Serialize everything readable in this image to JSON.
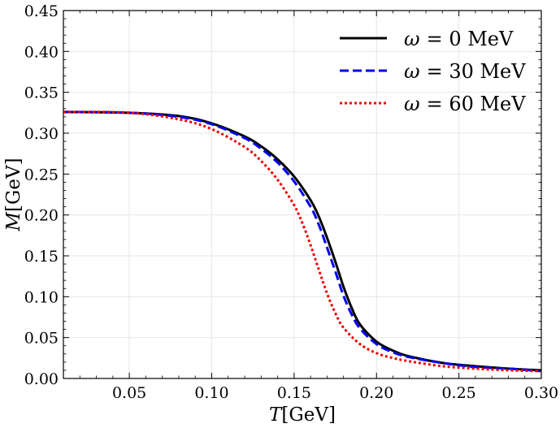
{
  "chart_data": {
    "type": "line",
    "title": "",
    "xlabel": {
      "symbol": "T",
      "unit": "[GeV]"
    },
    "ylabel": {
      "symbol": "M",
      "unit": "[GeV]"
    },
    "xlim": [
      0.01,
      0.3
    ],
    "ylim": [
      0.0,
      0.45
    ],
    "grid": true,
    "legend_position": "top-right",
    "x_ticks": [
      0.05,
      0.1,
      0.15,
      0.2,
      0.25,
      0.3
    ],
    "x_tick_labels": [
      "0.05",
      "0.10",
      "0.15",
      "0.20",
      "0.25",
      "0.30"
    ],
    "y_ticks": [
      0.0,
      0.05,
      0.1,
      0.15,
      0.2,
      0.25,
      0.3,
      0.35,
      0.4,
      0.45
    ],
    "y_tick_labels": [
      "0.00",
      "0.05",
      "0.10",
      "0.15",
      "0.20",
      "0.25",
      "0.30",
      "0.35",
      "0.40",
      "0.45"
    ],
    "series": [
      {
        "name": "ω = 0 MeV",
        "legend_symbol": "ω",
        "legend_value": "= 0 MeV",
        "color": "#000000",
        "style": "solid",
        "x": [
          0.01,
          0.05,
          0.08,
          0.1,
          0.12,
          0.13,
          0.14,
          0.15,
          0.16,
          0.165,
          0.17,
          0.175,
          0.18,
          0.185,
          0.19,
          0.2,
          0.21,
          0.22,
          0.24,
          0.26,
          0.28,
          0.3
        ],
        "y": [
          0.326,
          0.325,
          0.321,
          0.312,
          0.296,
          0.284,
          0.268,
          0.247,
          0.218,
          0.198,
          0.172,
          0.143,
          0.112,
          0.086,
          0.066,
          0.045,
          0.034,
          0.027,
          0.019,
          0.015,
          0.012,
          0.01
        ]
      },
      {
        "name": "ω = 30 MeV",
        "legend_symbol": "ω",
        "legend_value": "= 30 MeV",
        "color": "#0000ee",
        "style": "dashed",
        "x": [
          0.01,
          0.05,
          0.08,
          0.1,
          0.12,
          0.13,
          0.14,
          0.15,
          0.16,
          0.165,
          0.17,
          0.175,
          0.18,
          0.185,
          0.19,
          0.2,
          0.21,
          0.22,
          0.24,
          0.26,
          0.28,
          0.3
        ],
        "y": [
          0.326,
          0.325,
          0.32,
          0.311,
          0.294,
          0.281,
          0.264,
          0.241,
          0.21,
          0.188,
          0.16,
          0.131,
          0.101,
          0.078,
          0.061,
          0.042,
          0.032,
          0.026,
          0.019,
          0.014,
          0.012,
          0.009
        ]
      },
      {
        "name": "ω = 60 MeV",
        "legend_symbol": "ω",
        "legend_value": "= 60 MeV",
        "color": "#ee0000",
        "style": "dotted",
        "x": [
          0.01,
          0.05,
          0.08,
          0.1,
          0.12,
          0.13,
          0.14,
          0.15,
          0.155,
          0.16,
          0.165,
          0.17,
          0.175,
          0.18,
          0.19,
          0.2,
          0.21,
          0.22,
          0.24,
          0.26,
          0.28,
          0.3
        ],
        "y": [
          0.326,
          0.325,
          0.317,
          0.305,
          0.283,
          0.266,
          0.243,
          0.212,
          0.19,
          0.163,
          0.133,
          0.104,
          0.08,
          0.062,
          0.042,
          0.031,
          0.025,
          0.021,
          0.015,
          0.012,
          0.01,
          0.009
        ]
      }
    ]
  }
}
